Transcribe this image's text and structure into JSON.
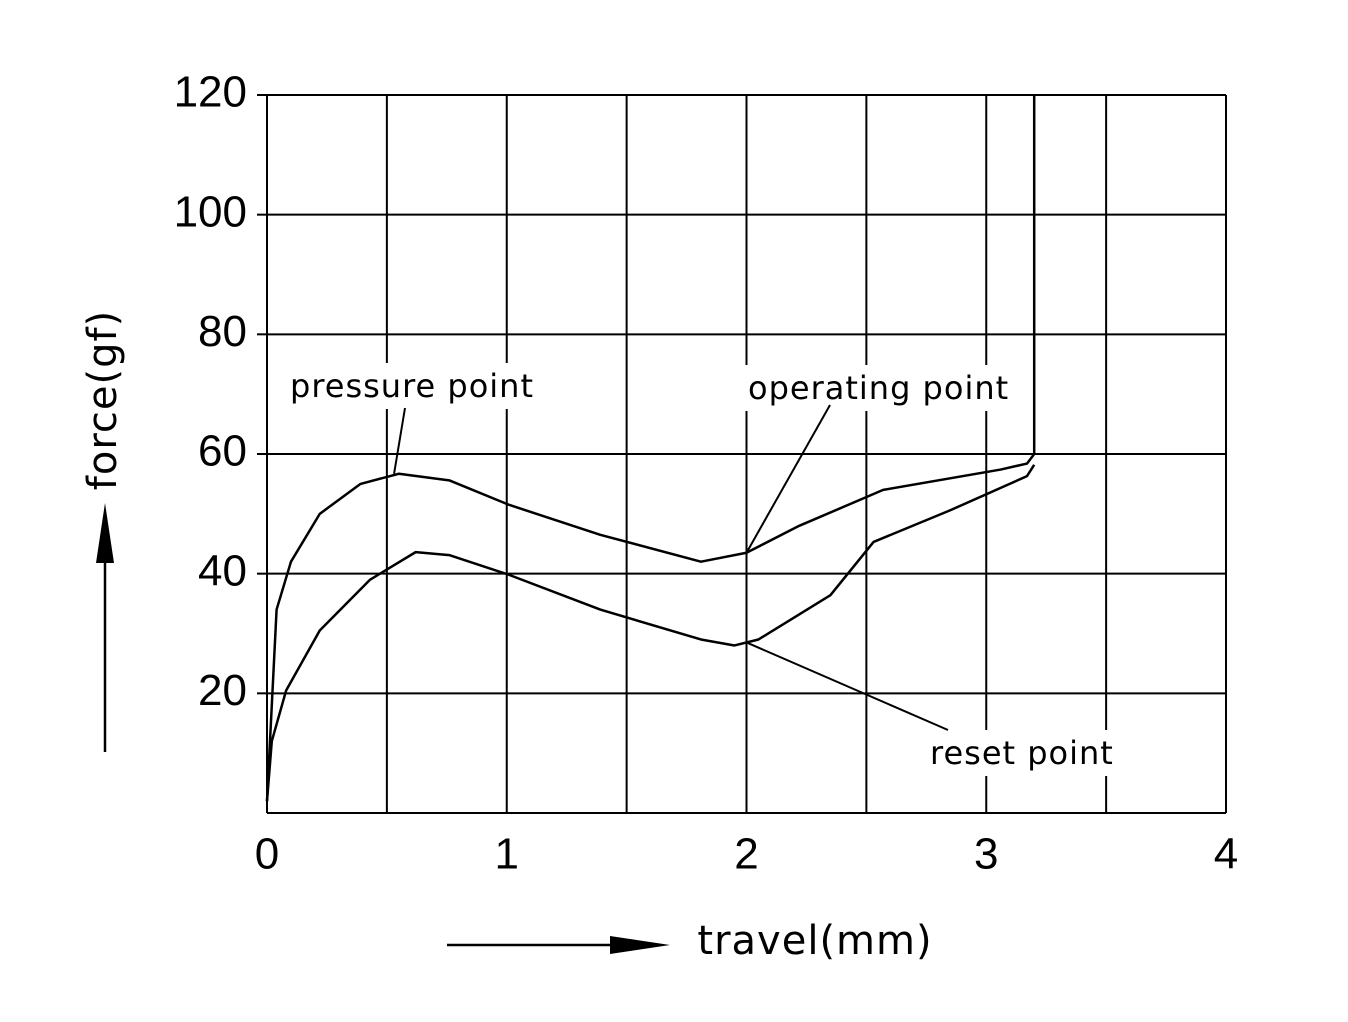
{
  "chart_data": {
    "type": "line",
    "xlabel": "travel(mm)",
    "ylabel": "force(gf)",
    "xlim": [
      0,
      4
    ],
    "ylim": [
      0,
      120
    ],
    "xticks": [
      0,
      1,
      2,
      3,
      4
    ],
    "x_minor_grid": [
      0.5,
      1.5,
      2.5,
      3.5
    ],
    "yticks": [
      20,
      40,
      60,
      80,
      100,
      120
    ],
    "grid": true,
    "series": [
      {
        "color": "#000000",
        "x": [
          0,
          0.04,
          0.1,
          0.22,
          0.39,
          0.55,
          0.76,
          1.01,
          1.39,
          1.81,
          2.0,
          2.22,
          2.57,
          3.06,
          3.17,
          3.2,
          3.2
        ],
        "values": [
          2,
          34,
          42,
          50,
          55,
          56.7,
          55.6,
          51.5,
          46.5,
          42,
          43.5,
          48,
          54,
          57.4,
          58.4,
          60,
          120
        ]
      },
      {
        "color": "#000000",
        "x": [
          0,
          0.02,
          0.08,
          0.22,
          0.43,
          0.62,
          0.76,
          1.01,
          1.39,
          1.81,
          1.95,
          2.05,
          2.35,
          2.53,
          2.85,
          3.17,
          3.2
        ],
        "values": [
          2,
          12,
          20.5,
          30.5,
          39,
          43.6,
          43.1,
          39.8,
          34,
          29,
          28,
          29,
          36.4,
          45.3,
          50.6,
          56.3,
          58.2
        ]
      }
    ],
    "annotations": [
      {
        "text": "pressure point",
        "x": 0.53,
        "y": 56.7
      },
      {
        "text": "operating point",
        "x": 2.0,
        "y": 43.5
      },
      {
        "text": "reset point",
        "x": 2.0,
        "y": 28.5
      }
    ]
  }
}
